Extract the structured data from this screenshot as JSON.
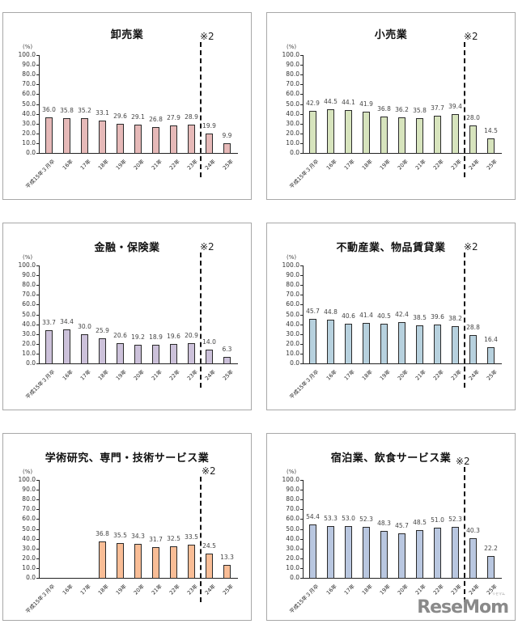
{
  "chart_data": [
    {
      "type": "bar",
      "title": "卸売業",
      "ylabel": "(%)",
      "xlabel": "",
      "ylim": [
        0,
        100
      ],
      "yticks": [
        "100.0",
        "90.0",
        "80.0",
        "70.0",
        "60.0",
        "50.0",
        "40.0",
        "30.0",
        "20.0",
        "10.0",
        "0.0"
      ],
      "categories": [
        "平成15年３月卒",
        "16年",
        "17年",
        "18年",
        "19年",
        "20年",
        "21年",
        "22年",
        "23年",
        "24年",
        "25年"
      ],
      "values": [
        36.0,
        35.8,
        35.2,
        33.1,
        29.6,
        29.1,
        26.8,
        27.9,
        28.9,
        19.9,
        9.9
      ],
      "labels": [
        "36.0",
        "35.8",
        "35.2",
        "33.1",
        "29.6",
        "29.1",
        "26.8",
        "27.9",
        "28.9",
        "19.9",
        "9.9"
      ],
      "bar_color": "#e6b9b8",
      "annotation": "※2",
      "annotation_position": "between 23年 and 24年 (dashed vertical line)",
      "grid": false,
      "legend": null
    },
    {
      "type": "bar",
      "title": "小売業",
      "ylabel": "(%)",
      "xlabel": "",
      "ylim": [
        0,
        100
      ],
      "yticks": [
        "100.0",
        "90.0",
        "80.0",
        "70.0",
        "60.0",
        "50.0",
        "40.0",
        "30.0",
        "20.0",
        "10.0",
        "0.0"
      ],
      "categories": [
        "平成15年３月卒",
        "16年",
        "17年",
        "18年",
        "19年",
        "20年",
        "21年",
        "22年",
        "23年",
        "24年",
        "25年"
      ],
      "values": [
        42.9,
        44.5,
        44.1,
        41.9,
        36.8,
        36.2,
        35.8,
        37.7,
        39.4,
        28.0,
        14.5
      ],
      "labels": [
        "42.9",
        "44.5",
        "44.1",
        "41.9",
        "36.8",
        "36.2",
        "35.8",
        "37.7",
        "39.4",
        "28.0",
        "14.5"
      ],
      "bar_color": "#d7e4bd",
      "annotation": "※2",
      "annotation_position": "between 23年 and 24年 (dashed vertical line)",
      "grid": false,
      "legend": null
    },
    {
      "type": "bar",
      "title": "金融・保険業",
      "ylabel": "(%)",
      "xlabel": "",
      "ylim": [
        0,
        100
      ],
      "yticks": [
        "100.0",
        "90.0",
        "80.0",
        "70.0",
        "60.0",
        "50.0",
        "40.0",
        "30.0",
        "20.0",
        "10.0",
        "0.0"
      ],
      "categories": [
        "平成15年３月卒",
        "16年",
        "17年",
        "18年",
        "19年",
        "20年",
        "21年",
        "22年",
        "23年",
        "24年",
        "25年"
      ],
      "values": [
        33.7,
        34.4,
        30.0,
        25.9,
        20.6,
        19.2,
        18.9,
        19.6,
        20.9,
        14.0,
        6.3
      ],
      "labels": [
        "33.7",
        "34.4",
        "30.0",
        "25.9",
        "20.6",
        "19.2",
        "18.9",
        "19.6",
        "20.9",
        "14.0",
        "6.3"
      ],
      "bar_color": "#ccc1da",
      "annotation": "※2",
      "annotation_position": "between 23年 and 24年 (dashed vertical line)",
      "grid": false,
      "legend": null
    },
    {
      "type": "bar",
      "title": "不動産業、物品賃貸業",
      "ylabel": "(%)",
      "xlabel": "",
      "ylim": [
        0,
        100
      ],
      "yticks": [
        "100.0",
        "90.0",
        "80.0",
        "70.0",
        "60.0",
        "50.0",
        "40.0",
        "30.0",
        "20.0",
        "10.0",
        "0.0"
      ],
      "categories": [
        "平成15年３月卒",
        "16年",
        "17年",
        "18年",
        "19年",
        "20年",
        "21年",
        "22年",
        "23年",
        "24年",
        "25年"
      ],
      "values": [
        45.7,
        44.8,
        40.6,
        41.4,
        40.5,
        42.4,
        38.5,
        39.6,
        38.2,
        28.8,
        16.4
      ],
      "labels": [
        "45.7",
        "44.8",
        "40.6",
        "41.4",
        "40.5",
        "42.4",
        "38.5",
        "39.6",
        "38.2",
        "28.8",
        "16.4"
      ],
      "bar_color": "#b7d1de",
      "annotation": "※2",
      "annotation_position": "between 23年 and 24年 (dashed vertical line)",
      "grid": false,
      "legend": null
    },
    {
      "type": "bar",
      "title": "学術研究、専門・技術サービス業",
      "ylabel": "(%)",
      "xlabel": "",
      "ylim": [
        0,
        100
      ],
      "yticks": [
        "100.0",
        "90.0",
        "80.0",
        "70.0",
        "60.0",
        "50.0",
        "40.0",
        "30.0",
        "20.0",
        "10.0",
        "0.0"
      ],
      "categories": [
        "平成15年３月卒",
        "16年",
        "17年",
        "18年",
        "19年",
        "20年",
        "21年",
        "22年",
        "23年",
        "24年",
        "25年"
      ],
      "values": [
        null,
        null,
        null,
        36.8,
        35.5,
        34.3,
        31.7,
        32.5,
        33.5,
        24.5,
        13.3
      ],
      "labels": [
        "",
        "",
        "",
        "36.8",
        "35.5",
        "34.3",
        "31.7",
        "32.5",
        "33.5",
        "24.5",
        "13.3"
      ],
      "bar_color": "#f9bd96",
      "annotation": "※2",
      "annotation_position": "between 23年 and 24年 (dashed vertical line)",
      "grid": false,
      "legend": null
    },
    {
      "type": "bar",
      "title": "宿泊業、飲食サービス業",
      "ylabel": "(%)",
      "xlabel": "",
      "ylim": [
        0,
        100
      ],
      "yticks": [
        "100.0",
        "90.0",
        "80.0",
        "70.0",
        "60.0",
        "50.0",
        "40.0",
        "30.0",
        "20.0",
        "10.0",
        "0.0"
      ],
      "categories": [
        "平成15年３月卒",
        "16年",
        "17年",
        "18年",
        "19年",
        "20年",
        "21年",
        "22年",
        "23年",
        "24年",
        "25年"
      ],
      "values": [
        54.4,
        53.3,
        53.0,
        52.3,
        48.3,
        45.7,
        48.5,
        51.0,
        52.3,
        40.3,
        22.2
      ],
      "labels": [
        "54.4",
        "53.3",
        "53.0",
        "52.3",
        "48.3",
        "45.7",
        "48.5",
        "51.0",
        "52.3",
        "40.3",
        "22.2"
      ],
      "bar_color": "#b9c7e0",
      "annotation": "※2",
      "annotation_position": "between 23年 and 24年 (dashed vertical line)",
      "grid": false,
      "legend": null
    }
  ],
  "watermark": {
    "text": "ReseMom",
    "subtext": "リセマム"
  }
}
